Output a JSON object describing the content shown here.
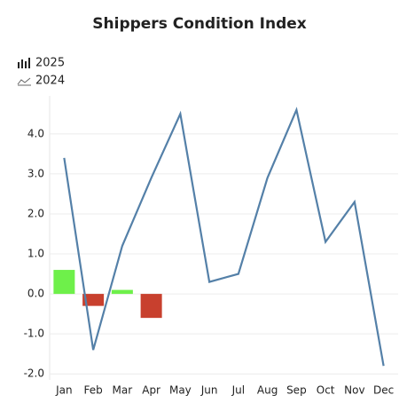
{
  "chart_data": {
    "type": "bar-line",
    "title": "Shippers Condition Index",
    "categories": [
      "Jan",
      "Feb",
      "Mar",
      "Apr",
      "May",
      "Jun",
      "Jul",
      "Aug",
      "Sep",
      "Oct",
      "Nov",
      "Dec"
    ],
    "series": [
      {
        "name": "2025",
        "type": "bar",
        "colors": [
          "#6ef04a",
          "#c8402e",
          "#6ef04a",
          "#c8402e"
        ],
        "values": [
          0.6,
          -0.3,
          0.1,
          -0.6,
          null,
          null,
          null,
          null,
          null,
          null,
          null,
          null
        ]
      },
      {
        "name": "2024",
        "type": "line",
        "color": "#5480a8",
        "values": [
          3.4,
          -1.4,
          1.2,
          2.9,
          4.5,
          0.3,
          0.5,
          2.9,
          4.6,
          1.3,
          2.3,
          -1.8
        ]
      }
    ],
    "ylim": [
      -2.15,
      4.95
    ],
    "yticks": [
      {
        "value": -2,
        "label": "-2.0"
      },
      {
        "value": -1,
        "label": "-1.0"
      },
      {
        "value": 0,
        "label": "0.0"
      },
      {
        "value": 1,
        "label": "1.0"
      },
      {
        "value": 2,
        "label": "2.0"
      },
      {
        "value": 3,
        "label": "3.0"
      },
      {
        "value": 4,
        "label": "4.0"
      }
    ],
    "grid": true
  }
}
